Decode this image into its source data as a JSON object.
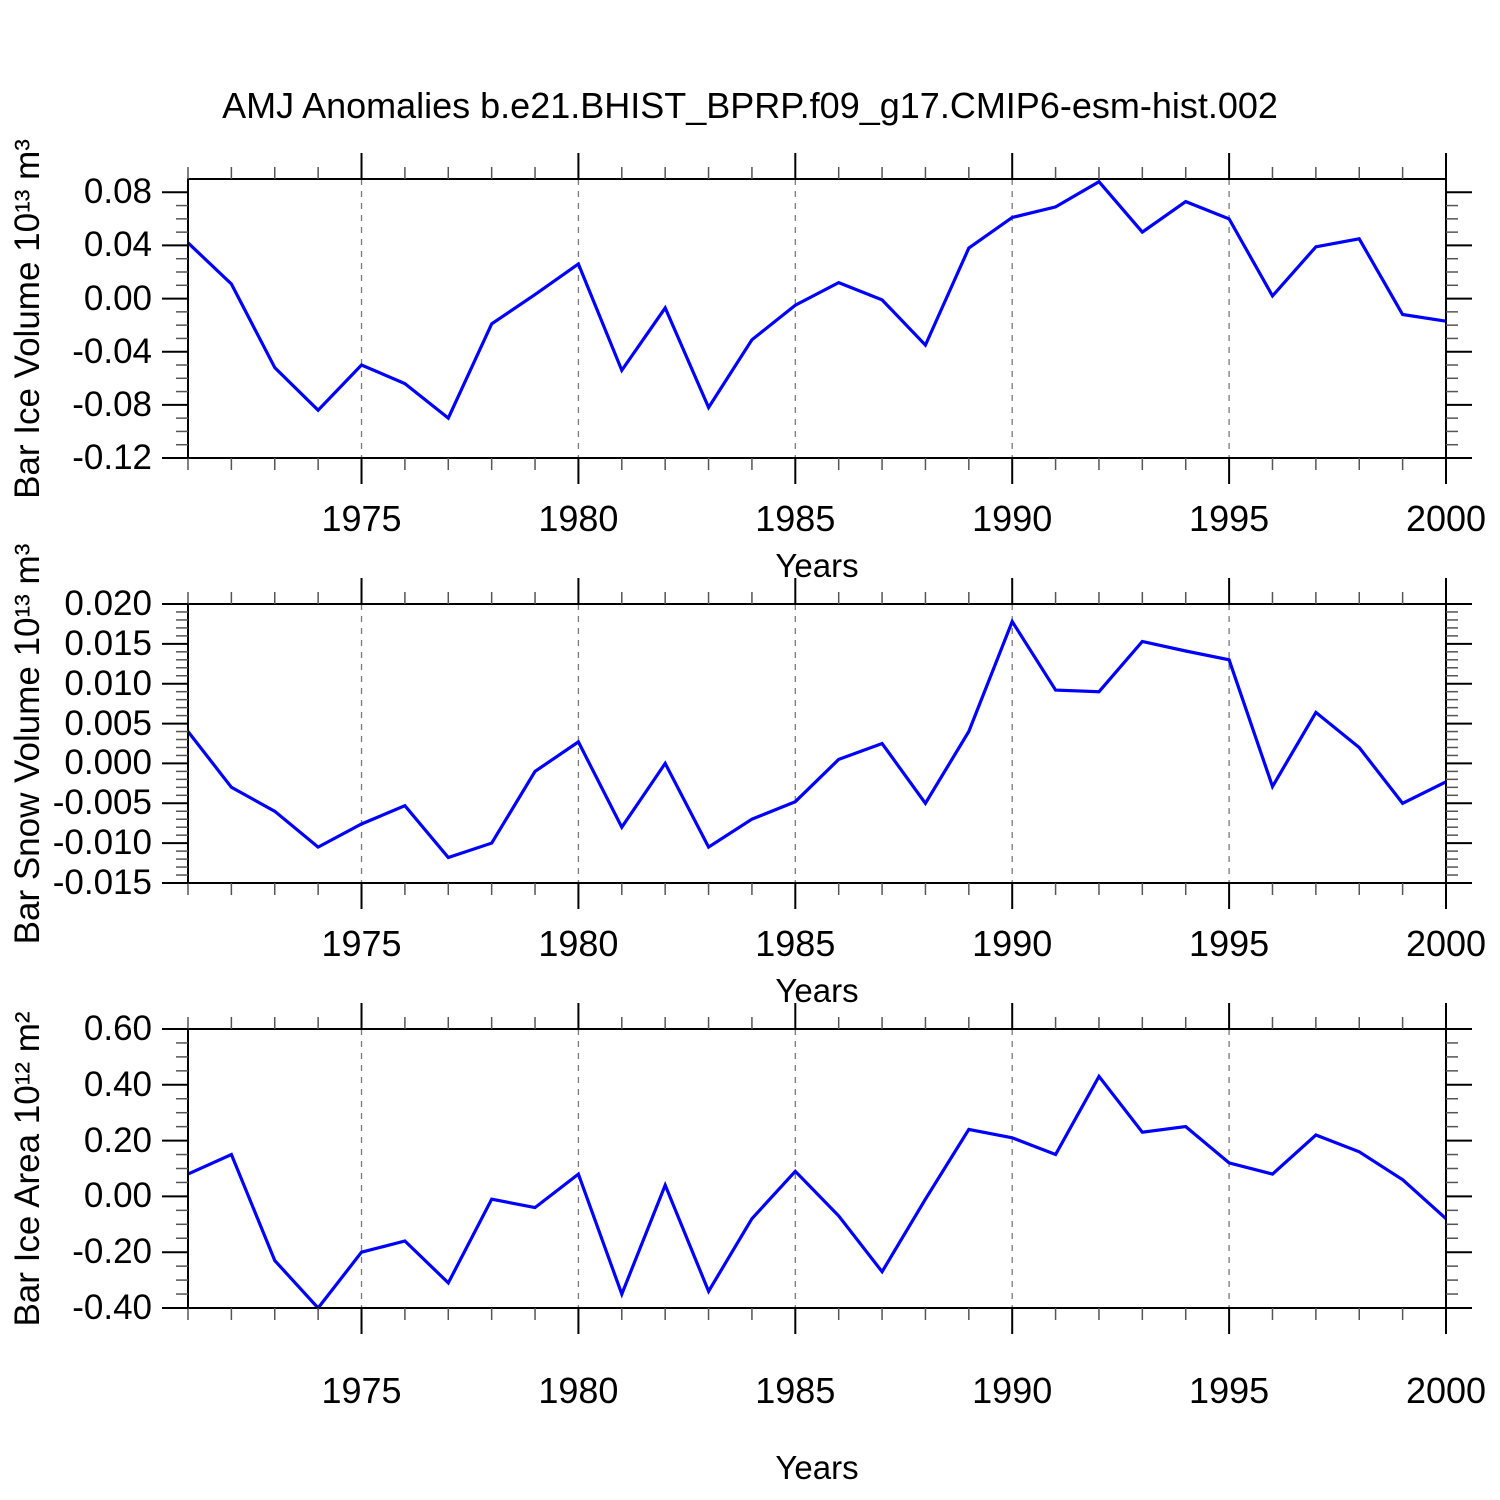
{
  "title": "AMJ Anomalies b.e21.BHIST_BPRP.f09_g17.CMIP6-esm-hist.002",
  "colors": {
    "line": "#0000ff",
    "axis": "#000000",
    "minor_tick": "#555555",
    "grid": "#7a7a7a",
    "background": "#ffffff"
  },
  "chart_data": [
    {
      "type": "line",
      "ylabel": "Bar Ice Volume 10¹³ m³",
      "xlabel": "Years",
      "x": [
        1971,
        1972,
        1973,
        1974,
        1975,
        1976,
        1977,
        1978,
        1979,
        1980,
        1981,
        1982,
        1983,
        1984,
        1985,
        1986,
        1987,
        1988,
        1989,
        1990,
        1991,
        1992,
        1993,
        1994,
        1995,
        1996,
        1997,
        1998,
        1999,
        2000
      ],
      "values": [
        0.042,
        0.011,
        -0.052,
        -0.084,
        -0.05,
        -0.064,
        -0.09,
        -0.019,
        0.003,
        0.026,
        -0.054,
        -0.007,
        -0.082,
        -0.031,
        -0.005,
        0.012,
        -0.001,
        -0.035,
        0.038,
        0.061,
        0.069,
        0.088,
        0.05,
        0.073,
        0.06,
        0.002,
        0.039,
        0.045,
        -0.012,
        -0.017
      ],
      "xlim": [
        1971,
        2000
      ],
      "ylim": [
        -0.12,
        0.09
      ],
      "yticks": [
        {
          "v": 0.08,
          "l": "0.08"
        },
        {
          "v": 0.04,
          "l": "0.04"
        },
        {
          "v": 0.0,
          "l": "0.00"
        },
        {
          "v": -0.04,
          "l": "-0.04"
        },
        {
          "v": -0.08,
          "l": "-0.08"
        },
        {
          "v": -0.12,
          "l": "-0.12"
        }
      ],
      "ytick_minor_step": 0.01,
      "xticks": [
        {
          "v": 1975,
          "l": "1975"
        },
        {
          "v": 1980,
          "l": "1980"
        },
        {
          "v": 1985,
          "l": "1985"
        },
        {
          "v": 1990,
          "l": "1990"
        },
        {
          "v": 1995,
          "l": "1995"
        },
        {
          "v": 2000,
          "l": "2000"
        }
      ],
      "xtick_minor_step": 1,
      "grid_x_dashed": [
        1975,
        1980,
        1985,
        1990,
        1995
      ],
      "legend": "none"
    },
    {
      "type": "line",
      "ylabel": "Bar Snow Volume 10¹³ m³",
      "xlabel": "Years",
      "x": [
        1971,
        1972,
        1973,
        1974,
        1975,
        1976,
        1977,
        1978,
        1979,
        1980,
        1981,
        1982,
        1983,
        1984,
        1985,
        1986,
        1987,
        1988,
        1989,
        1990,
        1991,
        1992,
        1993,
        1994,
        1995,
        1996,
        1997,
        1998,
        1999,
        2000
      ],
      "values": [
        0.004,
        -0.003,
        -0.006,
        -0.0105,
        -0.0076,
        -0.0053,
        -0.0118,
        -0.01,
        -0.001,
        0.0027,
        -0.008,
        0.0,
        -0.0105,
        -0.007,
        -0.0048,
        0.0005,
        0.0025,
        -0.005,
        0.004,
        0.0178,
        0.0092,
        0.009,
        0.0153,
        0.0141,
        0.013,
        -0.0029,
        0.0064,
        0.002,
        -0.005,
        -0.0023
      ],
      "xlim": [
        1971,
        2000
      ],
      "ylim": [
        -0.015,
        0.02
      ],
      "yticks": [
        {
          "v": 0.02,
          "l": "0.020"
        },
        {
          "v": 0.015,
          "l": "0.015"
        },
        {
          "v": 0.01,
          "l": "0.010"
        },
        {
          "v": 0.005,
          "l": "0.005"
        },
        {
          "v": 0.0,
          "l": "0.000"
        },
        {
          "v": -0.005,
          "l": "-0.005"
        },
        {
          "v": -0.01,
          "l": "-0.010"
        },
        {
          "v": -0.015,
          "l": "-0.015"
        }
      ],
      "ytick_minor_step": 0.001,
      "xticks": [
        {
          "v": 1975,
          "l": "1975"
        },
        {
          "v": 1980,
          "l": "1980"
        },
        {
          "v": 1985,
          "l": "1985"
        },
        {
          "v": 1990,
          "l": "1990"
        },
        {
          "v": 1995,
          "l": "1995"
        },
        {
          "v": 2000,
          "l": "2000"
        }
      ],
      "xtick_minor_step": 1,
      "grid_x_dashed": [
        1975,
        1980,
        1985,
        1990,
        1995
      ],
      "legend": "none"
    },
    {
      "type": "line",
      "ylabel": "Bar Ice Area 10¹² m²",
      "xlabel": "Years",
      "x": [
        1971,
        1972,
        1973,
        1974,
        1975,
        1976,
        1977,
        1978,
        1979,
        1980,
        1981,
        1982,
        1983,
        1984,
        1985,
        1986,
        1987,
        1988,
        1989,
        1990,
        1991,
        1992,
        1993,
        1994,
        1995,
        1996,
        1997,
        1998,
        1999,
        2000
      ],
      "values": [
        0.08,
        0.15,
        -0.23,
        -0.4,
        -0.2,
        -0.16,
        -0.31,
        -0.01,
        -0.04,
        0.08,
        -0.35,
        0.04,
        -0.34,
        -0.08,
        0.09,
        -0.07,
        -0.27,
        -0.01,
        0.24,
        0.21,
        0.15,
        0.43,
        0.23,
        0.25,
        0.12,
        0.08,
        0.22,
        0.16,
        0.06,
        -0.08
      ],
      "xlim": [
        1971,
        2000
      ],
      "ylim": [
        -0.4,
        0.6
      ],
      "yticks": [
        {
          "v": 0.6,
          "l": "0.60"
        },
        {
          "v": 0.4,
          "l": "0.40"
        },
        {
          "v": 0.2,
          "l": "0.20"
        },
        {
          "v": 0.0,
          "l": "0.00"
        },
        {
          "v": -0.2,
          "l": "-0.20"
        },
        {
          "v": -0.4,
          "l": "-0.40"
        }
      ],
      "ytick_minor_step": 0.05,
      "xticks": [
        {
          "v": 1975,
          "l": "1975"
        },
        {
          "v": 1980,
          "l": "1980"
        },
        {
          "v": 1985,
          "l": "1985"
        },
        {
          "v": 1990,
          "l": "1990"
        },
        {
          "v": 1995,
          "l": "1995"
        },
        {
          "v": 2000,
          "l": "2000"
        }
      ],
      "xtick_minor_step": 1,
      "grid_x_dashed": [
        1975,
        1980,
        1985,
        1990,
        1995
      ],
      "legend": "none"
    }
  ]
}
